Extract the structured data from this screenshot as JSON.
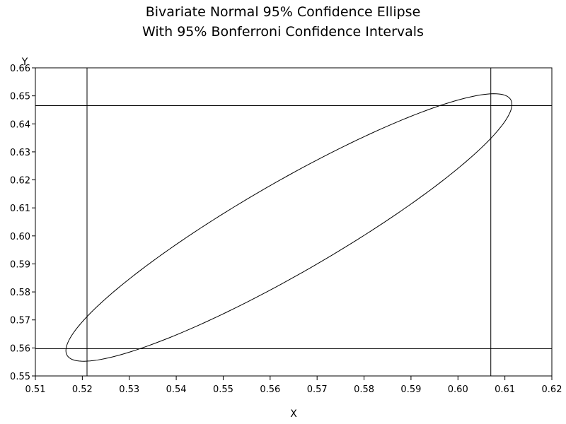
{
  "chart_data": {
    "type": "line",
    "title": "Bivariate Normal 95% Confidence Ellipse",
    "subtitle": "With 95% Bonferroni Confidence Intervals",
    "xlabel": "X",
    "ylabel": "Y",
    "xlim": [
      0.51,
      0.62
    ],
    "ylim": [
      0.55,
      0.66
    ],
    "x_ticks": [
      "0.51",
      "0.52",
      "0.53",
      "0.54",
      "0.55",
      "0.56",
      "0.57",
      "0.58",
      "0.59",
      "0.60",
      "0.61",
      "0.62"
    ],
    "y_ticks": [
      "0.55",
      "0.56",
      "0.57",
      "0.58",
      "0.59",
      "0.60",
      "0.61",
      "0.62",
      "0.63",
      "0.64",
      "0.65",
      "0.66"
    ],
    "grid": false,
    "ellipse": {
      "center": [
        0.564,
        0.603
      ],
      "x_range": [
        0.5165,
        0.6115
      ],
      "y_range": [
        0.5555,
        0.651
      ],
      "correlation": 0.92
    },
    "bonferroni_intervals": {
      "x": [
        0.521,
        0.607
      ],
      "y": [
        0.5597,
        0.6465
      ]
    }
  }
}
